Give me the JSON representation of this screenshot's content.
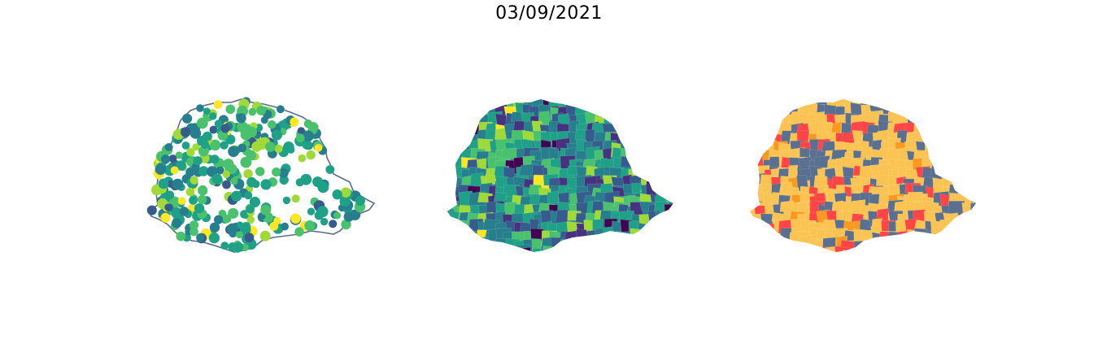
{
  "title": "03/09/2021",
  "colors": {
    "outline": "#5a6e8c",
    "viridis": [
      "#440154",
      "#46327e",
      "#365c8d",
      "#277f8e",
      "#1fa187",
      "#4ac16d",
      "#a0da39",
      "#fde725"
    ],
    "categories": [
      "#fbc452",
      "#ff4545",
      "#5a7090",
      "#f89a20"
    ]
  },
  "panels": [
    {
      "name": "dot-map",
      "type": "proportional-points"
    },
    {
      "name": "choropleth-continuous",
      "type": "choropleth",
      "palette": "viridis"
    },
    {
      "name": "choropleth-categorical",
      "type": "choropleth",
      "palette": "categories"
    }
  ]
}
